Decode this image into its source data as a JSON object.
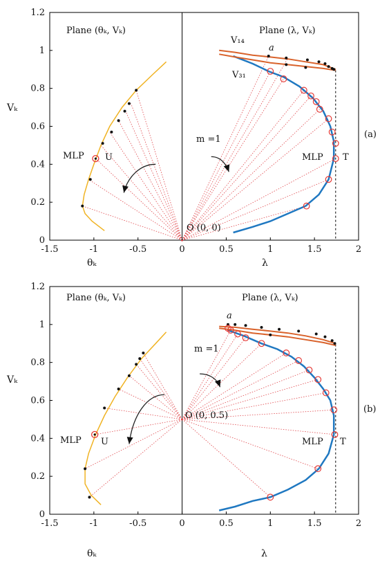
{
  "colors": {
    "locus": "#f0b323",
    "pv": "#1f78c1",
    "limit": "#d9622b",
    "ray": "#e0474c",
    "marker": "#e53935"
  },
  "chart_data": [
    {
      "type": "line",
      "panel_label": "(a)",
      "xlim": [
        -1.5,
        2
      ],
      "ylim": [
        0,
        1.2
      ],
      "x_ticks": [
        "-1.5",
        "-1",
        "-0.5",
        "0",
        "0.5",
        "1",
        "1.5",
        "2"
      ],
      "y_ticks": [
        "0",
        "0.2",
        "0.4",
        "0.6",
        "0.8",
        "1",
        "1.2"
      ],
      "ylabel": "Vₖ",
      "xlabel_left": "θₖ",
      "xlabel_right": "λ",
      "title_left": "Plane (θₖ, Vₖ)",
      "title_right": "Plane (λ, Vₖ)",
      "origin_label": "O (0, 0)",
      "origin": [
        0,
        0
      ],
      "m_label": "m =1",
      "v14_label": "V₁₄",
      "v31_label": "V₃₁",
      "a_label": "a",
      "mlp_left_label": "MLP",
      "u_label": "U",
      "mlp_right_label": "MLP",
      "t_label": "T",
      "lambda_max": 1.74,
      "left_locus": [
        [
          -0.88,
          0.05
        ],
        [
          -1.02,
          0.1
        ],
        [
          -1.1,
          0.14
        ],
        [
          -1.13,
          0.18
        ],
        [
          -1.11,
          0.24
        ],
        [
          -1.06,
          0.32
        ],
        [
          -1.0,
          0.4
        ],
        [
          -0.92,
          0.5
        ],
        [
          -0.82,
          0.6
        ],
        [
          -0.68,
          0.7
        ],
        [
          -0.52,
          0.79
        ],
        [
          -0.34,
          0.87
        ],
        [
          -0.18,
          0.94
        ]
      ],
      "left_dots": [
        [
          -1.13,
          0.18
        ],
        [
          -1.04,
          0.32
        ],
        [
          -0.9,
          0.51
        ],
        [
          -0.8,
          0.57
        ],
        [
          -0.72,
          0.63
        ],
        [
          -0.65,
          0.68
        ],
        [
          -0.6,
          0.72
        ],
        [
          -0.52,
          0.79
        ]
      ],
      "mlp_u": [
        -0.98,
        0.43
      ],
      "pv_curve": [
        [
          0.58,
          0.04
        ],
        [
          0.8,
          0.07
        ],
        [
          1.0,
          0.1
        ],
        [
          1.2,
          0.14
        ],
        [
          1.4,
          0.18
        ],
        [
          1.55,
          0.24
        ],
        [
          1.66,
          0.32
        ],
        [
          1.72,
          0.43
        ],
        [
          1.72,
          0.52
        ],
        [
          1.68,
          0.6
        ],
        [
          1.6,
          0.68
        ],
        [
          1.48,
          0.75
        ],
        [
          1.33,
          0.81
        ],
        [
          1.15,
          0.86
        ],
        [
          0.98,
          0.89
        ],
        [
          0.8,
          0.93
        ],
        [
          0.58,
          0.97
        ]
      ],
      "pv_markers": [
        [
          1.41,
          0.18
        ],
        [
          1.66,
          0.32
        ],
        [
          1.74,
          0.43
        ],
        [
          1.74,
          0.51
        ],
        [
          1.7,
          0.57
        ],
        [
          1.66,
          0.64
        ],
        [
          1.56,
          0.69
        ],
        [
          1.52,
          0.73
        ],
        [
          1.46,
          0.76
        ],
        [
          1.38,
          0.79
        ],
        [
          1.15,
          0.85
        ],
        [
          1.0,
          0.89
        ]
      ],
      "v14_curve": [
        [
          0.42,
          1.0
        ],
        [
          0.6,
          0.99
        ],
        [
          0.8,
          0.975
        ],
        [
          1.0,
          0.965
        ],
        [
          1.2,
          0.955
        ],
        [
          1.4,
          0.94
        ],
        [
          1.6,
          0.925
        ],
        [
          1.74,
          0.9
        ]
      ],
      "v31_curve": [
        [
          0.42,
          0.98
        ],
        [
          0.6,
          0.965
        ],
        [
          0.8,
          0.95
        ],
        [
          1.0,
          0.935
        ],
        [
          1.2,
          0.925
        ],
        [
          1.4,
          0.915
        ],
        [
          1.6,
          0.905
        ],
        [
          1.74,
          0.895
        ]
      ],
      "limit_dots": [
        [
          0.98,
          0.97
        ],
        [
          1.18,
          0.96
        ],
        [
          1.42,
          0.95
        ],
        [
          1.55,
          0.94
        ],
        [
          1.62,
          0.93
        ],
        [
          1.66,
          0.915
        ],
        [
          1.7,
          0.905
        ],
        [
          1.72,
          0.9
        ],
        [
          1.4,
          0.91
        ],
        [
          1.18,
          0.925
        ]
      ],
      "a_point": [
        1.0,
        0.975
      ],
      "left_rays": [
        [
          -1.13,
          0.18
        ],
        [
          -1.06,
          0.32
        ],
        [
          -0.98,
          0.43
        ],
        [
          -0.92,
          0.5
        ],
        [
          -0.82,
          0.57
        ],
        [
          -0.72,
          0.63
        ],
        [
          -0.64,
          0.68
        ],
        [
          -0.58,
          0.72
        ],
        [
          -0.52,
          0.79
        ]
      ],
      "right_rays": [
        [
          1.41,
          0.18
        ],
        [
          1.66,
          0.32
        ],
        [
          1.74,
          0.43
        ],
        [
          1.66,
          0.64
        ],
        [
          1.56,
          0.69
        ],
        [
          1.46,
          0.76
        ],
        [
          1.38,
          0.79
        ],
        [
          1.15,
          0.85
        ],
        [
          1.0,
          0.89
        ],
        [
          0.98,
          0.97
        ],
        [
          1.2,
          0.96
        ]
      ],
      "arrow_left": [
        [
          -0.3,
          0.4
        ],
        [
          -0.48,
          0.4
        ],
        [
          -0.62,
          0.33
        ],
        [
          -0.66,
          0.25
        ]
      ],
      "arrow_right": [
        [
          0.33,
          0.44
        ],
        [
          0.44,
          0.44
        ],
        [
          0.5,
          0.4
        ],
        [
          0.53,
          0.36
        ]
      ]
    },
    {
      "type": "line",
      "panel_label": "(b)",
      "xlim": [
        -1.5,
        2
      ],
      "ylim": [
        0,
        1.2
      ],
      "x_ticks": [
        "-1.5",
        "-1",
        "-0.5",
        "0",
        "0.5",
        "1",
        "1.5",
        "2"
      ],
      "y_ticks": [
        "0",
        "0.2",
        "0.4",
        "0.6",
        "0.8",
        "1",
        "1.2"
      ],
      "ylabel": "Vₖ",
      "xlabel_left": "θₖ",
      "xlabel_right": "λ",
      "title_left": "Plane (θₖ, Vₖ)",
      "title_right": "Plane (λ, Vₖ)",
      "origin_label": "O (0, 0.5)",
      "origin": [
        0,
        0.5
      ],
      "m_label": "m =1",
      "v14_label": "",
      "v31_label": "",
      "a_label": "a",
      "mlp_left_label": "MLP",
      "u_label": "U",
      "mlp_right_label": "MLP",
      "t_label": "T",
      "lambda_max": 1.74,
      "left_locus": [
        [
          -0.92,
          0.05
        ],
        [
          -1.03,
          0.1
        ],
        [
          -1.1,
          0.16
        ],
        [
          -1.1,
          0.24
        ],
        [
          -1.06,
          0.32
        ],
        [
          -0.98,
          0.42
        ],
        [
          -0.88,
          0.52
        ],
        [
          -0.76,
          0.62
        ],
        [
          -0.62,
          0.72
        ],
        [
          -0.46,
          0.82
        ],
        [
          -0.3,
          0.9
        ],
        [
          -0.18,
          0.96
        ]
      ],
      "left_dots": [
        [
          -1.05,
          0.09
        ],
        [
          -1.1,
          0.24
        ],
        [
          -0.88,
          0.56
        ],
        [
          -0.72,
          0.66
        ],
        [
          -0.6,
          0.73
        ],
        [
          -0.52,
          0.79
        ],
        [
          -0.48,
          0.82
        ],
        [
          -0.44,
          0.85
        ]
      ],
      "mlp_u": [
        -0.99,
        0.42
      ],
      "pv_curve": [
        [
          0.42,
          0.02
        ],
        [
          0.6,
          0.04
        ],
        [
          0.8,
          0.07
        ],
        [
          1.0,
          0.09
        ],
        [
          1.2,
          0.13
        ],
        [
          1.4,
          0.18
        ],
        [
          1.55,
          0.24
        ],
        [
          1.66,
          0.32
        ],
        [
          1.72,
          0.42
        ],
        [
          1.72,
          0.52
        ],
        [
          1.68,
          0.6
        ],
        [
          1.6,
          0.66
        ],
        [
          1.5,
          0.72
        ],
        [
          1.38,
          0.78
        ],
        [
          1.24,
          0.83
        ],
        [
          1.08,
          0.87
        ],
        [
          0.9,
          0.9
        ],
        [
          0.7,
          0.94
        ],
        [
          0.52,
          0.97
        ]
      ],
      "pv_markers": [
        [
          1.0,
          0.09
        ],
        [
          1.54,
          0.24
        ],
        [
          1.73,
          0.42
        ],
        [
          1.72,
          0.55
        ],
        [
          1.63,
          0.64
        ],
        [
          1.54,
          0.71
        ],
        [
          1.44,
          0.76
        ],
        [
          1.32,
          0.81
        ],
        [
          1.18,
          0.85
        ],
        [
          0.9,
          0.9
        ],
        [
          0.72,
          0.93
        ],
        [
          0.63,
          0.95
        ],
        [
          0.55,
          0.97
        ],
        [
          0.52,
          0.98
        ]
      ],
      "v14_curve": [
        [
          0.42,
          0.99
        ],
        [
          0.6,
          0.985
        ],
        [
          0.8,
          0.975
        ],
        [
          1.0,
          0.965
        ],
        [
          1.2,
          0.955
        ],
        [
          1.4,
          0.94
        ],
        [
          1.6,
          0.92
        ],
        [
          1.74,
          0.9
        ]
      ],
      "v31_curve": [
        [
          0.42,
          0.98
        ],
        [
          0.6,
          0.97
        ],
        [
          0.8,
          0.955
        ],
        [
          1.0,
          0.945
        ],
        [
          1.2,
          0.935
        ],
        [
          1.4,
          0.92
        ],
        [
          1.6,
          0.905
        ],
        [
          1.74,
          0.89
        ]
      ],
      "limit_dots": [
        [
          0.52,
          1.0
        ],
        [
          0.6,
          1.0
        ],
        [
          0.72,
          0.995
        ],
        [
          0.9,
          0.985
        ],
        [
          1.1,
          0.975
        ],
        [
          1.32,
          0.965
        ],
        [
          1.52,
          0.95
        ],
        [
          1.62,
          0.935
        ],
        [
          1.7,
          0.915
        ],
        [
          1.73,
          0.9
        ],
        [
          1.0,
          0.945
        ]
      ],
      "a_point": [
        0.52,
        1.0
      ],
      "left_rays": [
        [
          -1.05,
          0.09
        ],
        [
          -1.1,
          0.24
        ],
        [
          -0.99,
          0.42
        ],
        [
          -0.88,
          0.56
        ],
        [
          -0.72,
          0.66
        ],
        [
          -0.6,
          0.73
        ],
        [
          -0.52,
          0.79
        ],
        [
          -0.48,
          0.82
        ],
        [
          -0.44,
          0.85
        ]
      ],
      "right_rays": [
        [
          1.0,
          0.09
        ],
        [
          1.54,
          0.24
        ],
        [
          1.73,
          0.42
        ],
        [
          1.72,
          0.55
        ],
        [
          1.63,
          0.64
        ],
        [
          1.54,
          0.71
        ],
        [
          1.44,
          0.76
        ],
        [
          1.32,
          0.81
        ],
        [
          1.18,
          0.85
        ],
        [
          0.9,
          0.9
        ],
        [
          0.72,
          0.93
        ],
        [
          0.63,
          0.95
        ],
        [
          0.55,
          0.97
        ]
      ],
      "arrow_left": [
        [
          -0.2,
          0.63
        ],
        [
          -0.4,
          0.63
        ],
        [
          -0.56,
          0.52
        ],
        [
          -0.6,
          0.37
        ]
      ],
      "arrow_right": [
        [
          0.2,
          0.74
        ],
        [
          0.32,
          0.74
        ],
        [
          0.4,
          0.71
        ],
        [
          0.43,
          0.67
        ]
      ]
    }
  ]
}
